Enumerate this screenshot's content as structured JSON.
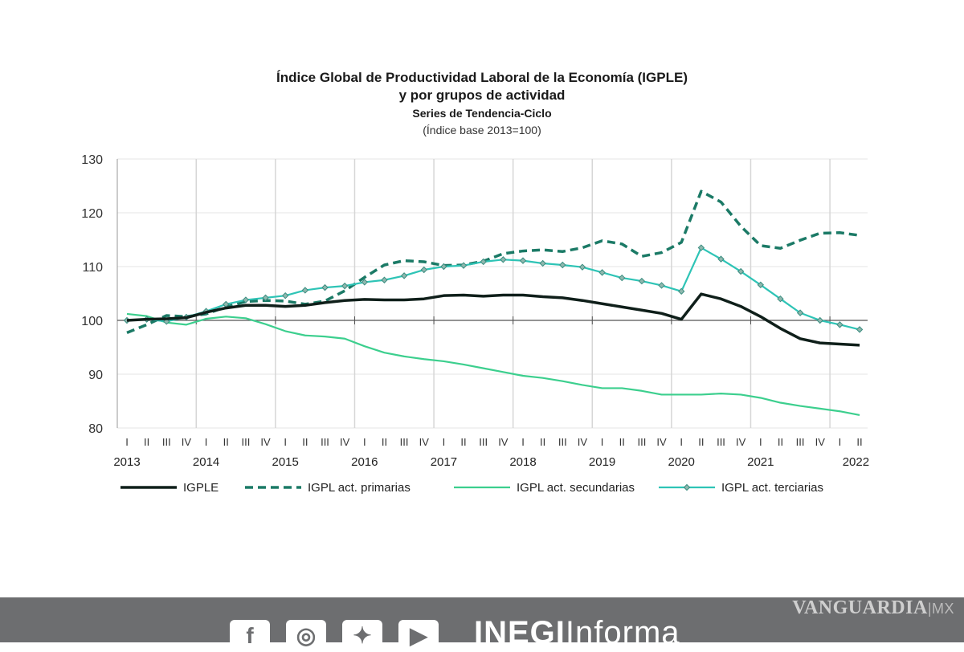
{
  "title_lines": [
    "Índice Global de Productividad Laboral de la Economía (IGPLE)",
    "y por grupos de actividad",
    "Series de Tendencia-Ciclo",
    "(Índice base 2013=100)"
  ],
  "footer": {
    "social_icons": [
      "facebook-icon",
      "instagram-icon",
      "twitter-icon",
      "youtube-icon"
    ],
    "brand_bold": "INEGI",
    "brand_light": "Informa",
    "watermark": "VANGUARDIA",
    "watermark_suffix": "MX"
  },
  "chart_data": {
    "type": "line",
    "title": "Índice Global de Productividad Laboral de la Economía (IGPLE) y por grupos de actividad",
    "subtitle": "Series de Tendencia-Ciclo (Índice base 2013=100)",
    "quarters": [
      "I",
      "II",
      "III",
      "IV"
    ],
    "years": [
      "2013",
      "2014",
      "2015",
      "2016",
      "2017",
      "2018",
      "2019",
      "2020",
      "2021",
      "2022"
    ],
    "ylim": [
      80,
      130
    ],
    "yticks": [
      80,
      90,
      100,
      110,
      120,
      130
    ],
    "grid": "vertical year lines and horizontal lines",
    "legend": "bottom",
    "series": [
      {
        "name": "IGPLE",
        "color": "#0f1f1a",
        "style": "solid-thick",
        "values": [
          100,
          100.2,
          100.3,
          100.5,
          101.5,
          102.3,
          102.8,
          102.8,
          102.6,
          102.8,
          103.3,
          103.7,
          103.9,
          103.8,
          103.8,
          104.0,
          104.6,
          104.7,
          104.5,
          104.7,
          104.7,
          104.4,
          104.2,
          103.7,
          103.1,
          102.5,
          101.9,
          101.3,
          100.2,
          104.9,
          104.0,
          102.6,
          100.7,
          98.5,
          96.6,
          95.8,
          95.6,
          95.4
        ]
      },
      {
        "name": "IGPL act. primarias",
        "color": "#1b7a66",
        "style": "dashed",
        "values": [
          97.7,
          99.2,
          100.9,
          100.7,
          101.2,
          102.5,
          103.5,
          103.7,
          103.6,
          103.0,
          103.6,
          105.5,
          108.0,
          110.3,
          111.1,
          110.9,
          110.2,
          110.3,
          111.0,
          112.4,
          112.9,
          113.1,
          112.8,
          113.5,
          114.8,
          114.2,
          111.9,
          112.6,
          114.5,
          124.0,
          122.0,
          117.5,
          113.9,
          113.4,
          114.9,
          116.2,
          116.3,
          115.8
        ]
      },
      {
        "name": "IGPL act. secundarias",
        "color": "#3ccf8e",
        "style": "solid",
        "values": [
          101.2,
          100.8,
          99.6,
          99.2,
          100.3,
          100.7,
          100.4,
          99.3,
          98.0,
          97.2,
          97.0,
          96.6,
          95.2,
          94.0,
          93.3,
          92.8,
          92.4,
          91.8,
          91.1,
          90.4,
          89.7,
          89.3,
          88.7,
          88.0,
          87.4,
          87.4,
          86.9,
          86.2,
          86.2,
          86.2,
          86.4,
          86.2,
          85.6,
          84.7,
          84.1,
          83.6,
          83.1,
          82.4
        ]
      },
      {
        "name": "IGPL act. terciarias",
        "color": "#2ec4b6",
        "style": "solid-diamond",
        "values": [
          100,
          100.2,
          99.8,
          100.6,
          101.7,
          103.0,
          103.8,
          104.2,
          104.6,
          105.6,
          106.1,
          106.4,
          107.1,
          107.5,
          108.3,
          109.4,
          110.0,
          110.2,
          110.9,
          111.3,
          111.1,
          110.6,
          110.3,
          109.9,
          108.9,
          107.9,
          107.3,
          106.5,
          105.4,
          113.5,
          111.4,
          109.1,
          106.6,
          104.0,
          101.4,
          100.0,
          99.2,
          98.3
        ]
      }
    ]
  }
}
